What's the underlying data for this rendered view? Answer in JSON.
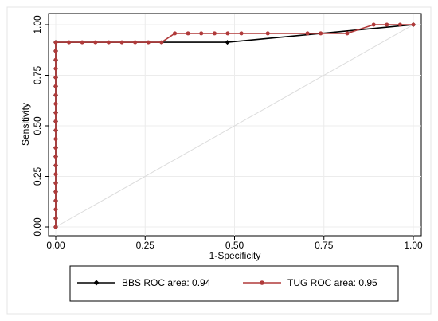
{
  "chart_data": {
    "type": "line",
    "xlabel": "1-Specificity",
    "ylabel": "Sensitivity",
    "xlim": [
      0,
      1
    ],
    "ylim": [
      0,
      1
    ],
    "xticks": [
      "0.00",
      "0.25",
      "0.50",
      "0.75",
      "1.00"
    ],
    "yticks": [
      "0.00",
      "0.25",
      "0.50",
      "0.75",
      "1.00"
    ],
    "grid": true,
    "legend_position": "bottom",
    "reference_line": [
      [
        0,
        0
      ],
      [
        1,
        1
      ]
    ],
    "series": [
      {
        "name": "BBS ROC area: 0.94",
        "color": "#000000",
        "points": [
          [
            0,
            0
          ],
          [
            0,
            0.043
          ],
          [
            0,
            0.087
          ],
          [
            0,
            0.13
          ],
          [
            0,
            0.174
          ],
          [
            0,
            0.217
          ],
          [
            0,
            0.261
          ],
          [
            0,
            0.304
          ],
          [
            0,
            0.348
          ],
          [
            0,
            0.391
          ],
          [
            0,
            0.435
          ],
          [
            0,
            0.478
          ],
          [
            0,
            0.522
          ],
          [
            0,
            0.565
          ],
          [
            0,
            0.609
          ],
          [
            0,
            0.652
          ],
          [
            0,
            0.696
          ],
          [
            0,
            0.739
          ],
          [
            0,
            0.783
          ],
          [
            0,
            0.826
          ],
          [
            0,
            0.87
          ],
          [
            0,
            0.913
          ],
          [
            0.48,
            0.913
          ],
          [
            1,
            1
          ]
        ]
      },
      {
        "name": "TUG ROC area: 0.95",
        "color": "#b03a3a",
        "points": [
          [
            0,
            0
          ],
          [
            0,
            0.043
          ],
          [
            0,
            0.087
          ],
          [
            0,
            0.13
          ],
          [
            0,
            0.174
          ],
          [
            0,
            0.217
          ],
          [
            0,
            0.261
          ],
          [
            0,
            0.304
          ],
          [
            0,
            0.348
          ],
          [
            0,
            0.391
          ],
          [
            0,
            0.435
          ],
          [
            0,
            0.478
          ],
          [
            0,
            0.522
          ],
          [
            0,
            0.565
          ],
          [
            0,
            0.609
          ],
          [
            0,
            0.652
          ],
          [
            0,
            0.696
          ],
          [
            0,
            0.739
          ],
          [
            0,
            0.783
          ],
          [
            0,
            0.826
          ],
          [
            0,
            0.87
          ],
          [
            0,
            0.913
          ],
          [
            0.037,
            0.913
          ],
          [
            0.074,
            0.913
          ],
          [
            0.111,
            0.913
          ],
          [
            0.148,
            0.913
          ],
          [
            0.185,
            0.913
          ],
          [
            0.222,
            0.913
          ],
          [
            0.259,
            0.913
          ],
          [
            0.296,
            0.913
          ],
          [
            0.333,
            0.957
          ],
          [
            0.37,
            0.957
          ],
          [
            0.407,
            0.957
          ],
          [
            0.444,
            0.957
          ],
          [
            0.481,
            0.957
          ],
          [
            0.519,
            0.957
          ],
          [
            0.593,
            0.957
          ],
          [
            0.704,
            0.957
          ],
          [
            0.741,
            0.957
          ],
          [
            0.815,
            0.957
          ],
          [
            0.889,
            1
          ],
          [
            0.926,
            1
          ],
          [
            0.963,
            1
          ],
          [
            1,
            1
          ]
        ]
      }
    ]
  }
}
